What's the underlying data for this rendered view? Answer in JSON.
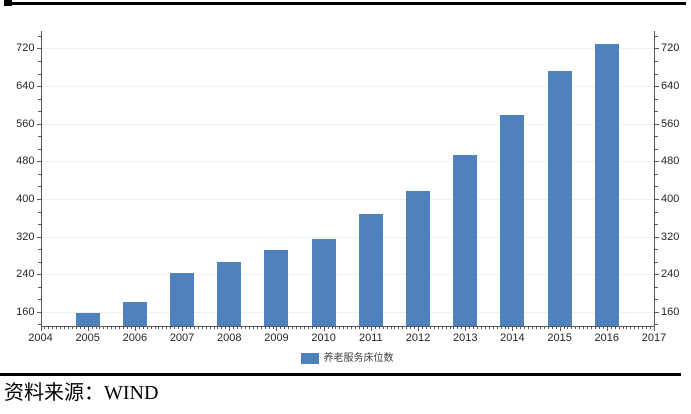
{
  "chart": {
    "source_note": "资料来源：WIND",
    "legend": {
      "label": "养老服务床位数",
      "swatch_color": "#4f81bd",
      "position": "bottom-center"
    }
  },
  "chart_data": {
    "type": "bar",
    "title": "",
    "xlabel": "",
    "ylabel": "",
    "series_name": "养老服务床位数",
    "categories": [
      "2005",
      "2006",
      "2007",
      "2008",
      "2009",
      "2010",
      "2011",
      "2012",
      "2013",
      "2014",
      "2015",
      "2016"
    ],
    "values": [
      158,
      180,
      242,
      266,
      292,
      314,
      369,
      417,
      494,
      578,
      673,
      730
    ],
    "bar_color": "#4f81bd",
    "x_axis": {
      "tick_labels": [
        "2004",
        "2005",
        "2006",
        "2007",
        "2008",
        "2009",
        "2010",
        "2011",
        "2012",
        "2013",
        "2014",
        "2015",
        "2016",
        "2017"
      ],
      "minor_ticks": "monthly"
    },
    "y_axis": {
      "min": 130,
      "max": 757,
      "major_tick_values": [
        160,
        240,
        320,
        400,
        480,
        560,
        640,
        720
      ],
      "major_tick_step": 80,
      "sides": [
        "left",
        "right"
      ]
    },
    "grid": "horizontal major gridlines only",
    "legend_position": "bottom-center"
  }
}
